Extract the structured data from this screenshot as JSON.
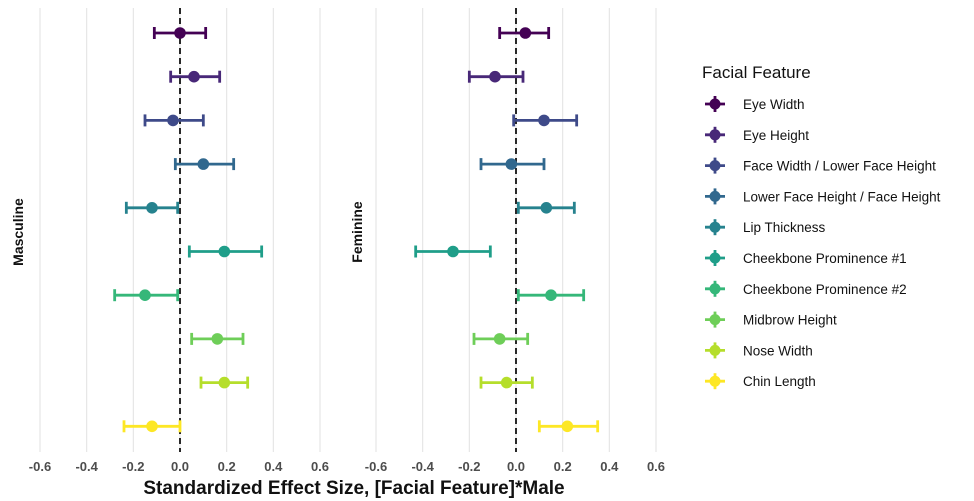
{
  "chart_data": {
    "type": "forest",
    "xlabel": "Standardized Effect Size, [Facial Feature]*Male",
    "xlim": [
      -0.6,
      0.6
    ],
    "xticks": [
      -0.6,
      -0.4,
      -0.2,
      0.0,
      0.2,
      0.4,
      0.6
    ],
    "xtick_labels": [
      "-0.6",
      "-0.4",
      "-0.2",
      "0.0",
      "0.2",
      "0.4",
      "0.6"
    ],
    "reference_line": 0.0,
    "legend": {
      "title": "Facial Feature",
      "position": "right"
    },
    "features": [
      {
        "name": "Eye Width",
        "color": "#440154"
      },
      {
        "name": "Eye Height",
        "color": "#482878"
      },
      {
        "name": "Face Width / Lower Face Height",
        "color": "#3e4a89"
      },
      {
        "name": "Lower Face Height / Face Height",
        "color": "#31688e"
      },
      {
        "name": "Lip Thickness",
        "color": "#26828e"
      },
      {
        "name": "Cheekbone Prominence #1",
        "color": "#1f9e89"
      },
      {
        "name": "Cheekbone Prominence #2",
        "color": "#35b779"
      },
      {
        "name": "Midbrow Height",
        "color": "#6ece58"
      },
      {
        "name": "Nose Width",
        "color": "#b5de2b"
      },
      {
        "name": "Chin Length",
        "color": "#fde725"
      }
    ],
    "panels": [
      {
        "label": "Masculine",
        "estimates": [
          0.0,
          0.06,
          -0.03,
          0.1,
          -0.12,
          0.19,
          -0.15,
          0.16,
          0.19,
          -0.12
        ],
        "lower": [
          -0.11,
          -0.04,
          -0.15,
          -0.02,
          -0.23,
          0.04,
          -0.28,
          0.05,
          0.09,
          -0.24
        ],
        "upper": [
          0.11,
          0.17,
          0.1,
          0.23,
          -0.01,
          0.35,
          -0.01,
          0.27,
          0.29,
          0.0
        ]
      },
      {
        "label": "Feminine",
        "estimates": [
          0.04,
          -0.09,
          0.12,
          -0.02,
          0.13,
          -0.27,
          0.15,
          -0.07,
          -0.04,
          0.22
        ],
        "lower": [
          -0.07,
          -0.2,
          -0.01,
          -0.15,
          0.01,
          -0.43,
          0.01,
          -0.18,
          -0.15,
          0.1
        ],
        "upper": [
          0.14,
          0.03,
          0.26,
          0.12,
          0.25,
          -0.11,
          0.29,
          0.05,
          0.07,
          0.35
        ]
      }
    ]
  }
}
